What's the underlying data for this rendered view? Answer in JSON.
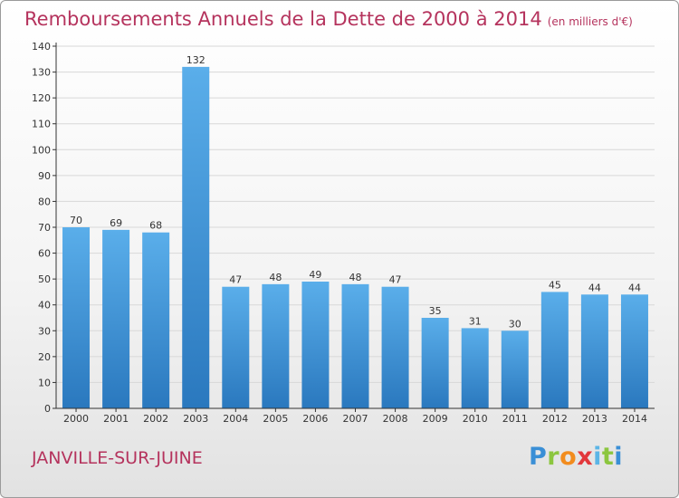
{
  "page": {
    "title": "Remboursements Annuels de la Dette de 2000 à 2014",
    "subtitle": "(en milliers d'€)",
    "city": "JANVILLE-SUR-JUINE",
    "logo_letters": [
      "P",
      "r",
      "o",
      "x",
      "i",
      "t",
      "i"
    ],
    "logo_colors": [
      "#3a8fd6",
      "#8cc63f",
      "#f28c1e",
      "#e2373b",
      "#5bb5e6",
      "#8cc63f",
      "#3a8fd6"
    ]
  },
  "colors": {
    "title": "#b5335d",
    "bar_top": "#5aaeea",
    "bar_bottom": "#2a78be",
    "axis": "#333333",
    "grid": "#d8d8d8"
  },
  "chart_data": {
    "type": "bar",
    "categories": [
      "2000",
      "2001",
      "2002",
      "2003",
      "2004",
      "2005",
      "2006",
      "2007",
      "2008",
      "2009",
      "2010",
      "2011",
      "2012",
      "2013",
      "2014"
    ],
    "values": [
      70,
      69,
      68,
      132,
      47,
      48,
      49,
      48,
      47,
      35,
      31,
      30,
      45,
      44,
      44
    ],
    "ylim": [
      0,
      140
    ],
    "yticks": [
      0,
      10,
      20,
      30,
      40,
      50,
      60,
      70,
      80,
      90,
      100,
      110,
      120,
      130,
      140
    ],
    "grid": true,
    "data_labels": true
  }
}
